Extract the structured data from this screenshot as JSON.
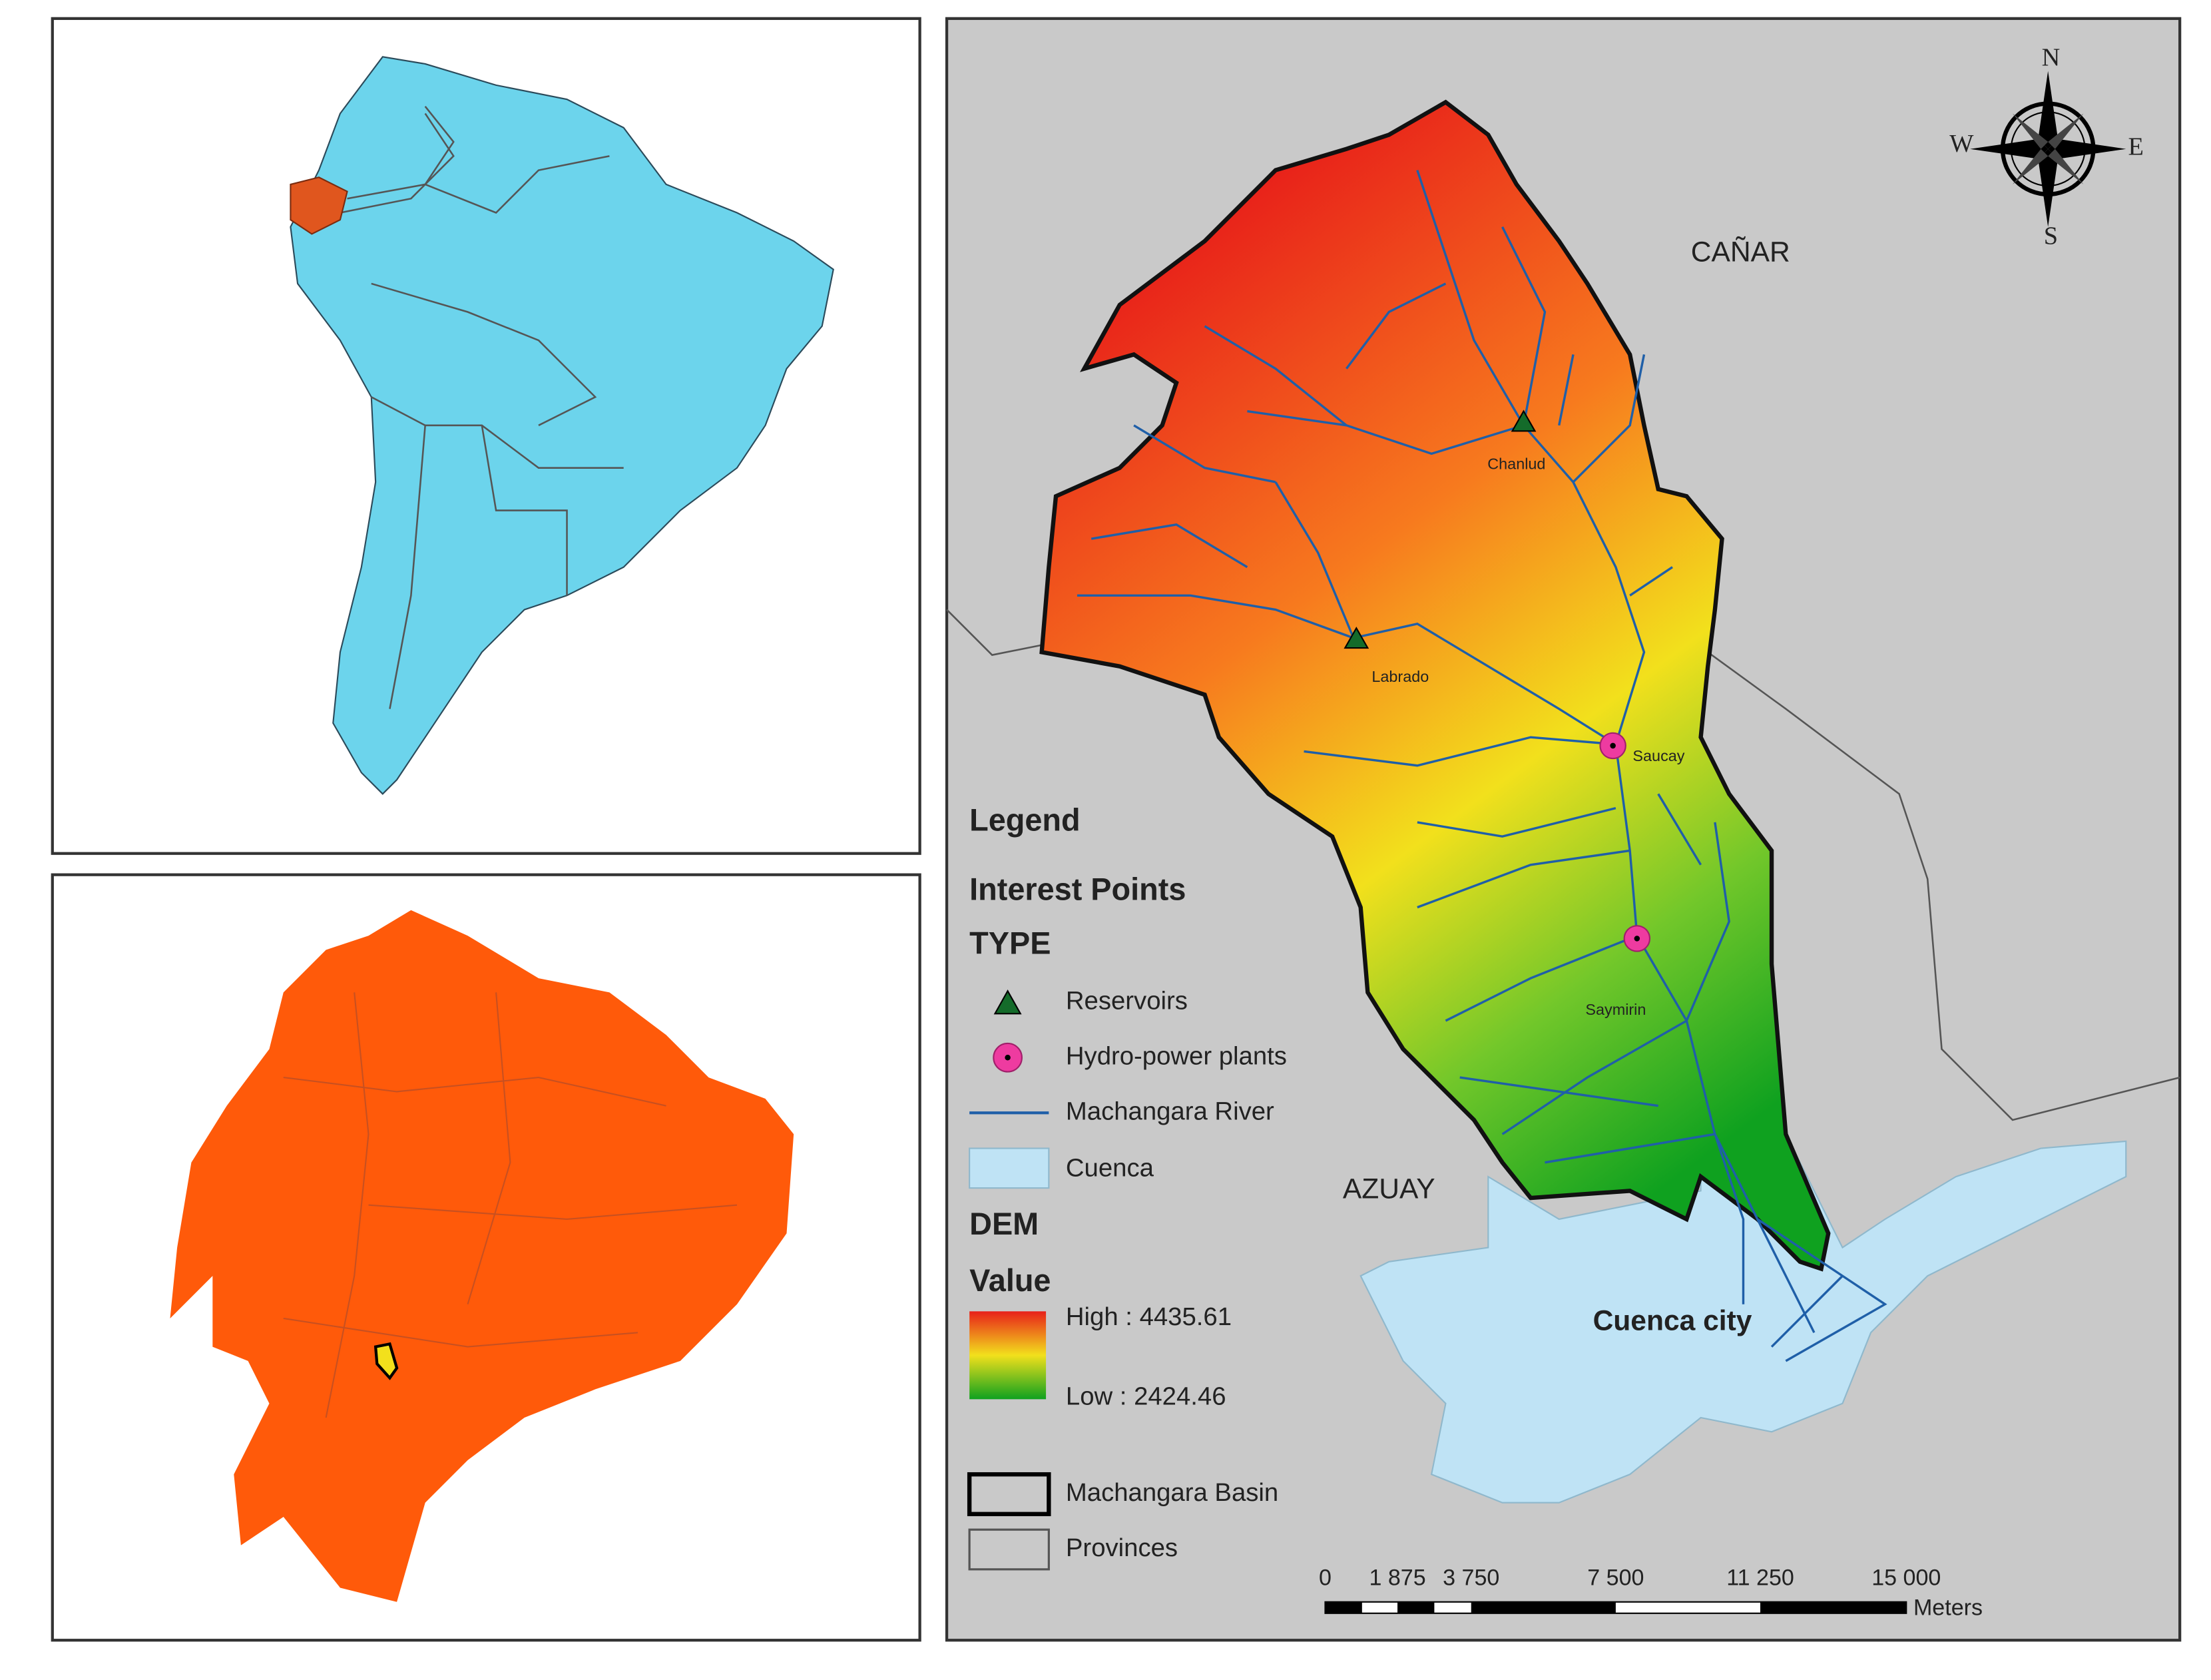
{
  "compass": {
    "north": "N",
    "south": "S",
    "east": "E",
    "west": "W"
  },
  "regions": [
    "CAÑAR",
    "AZUAY"
  ],
  "places": [
    "Chanlud",
    "Labrado",
    "Saucay",
    "Saymirin",
    "Cuenca city"
  ],
  "legend": {
    "title": "Legend",
    "points_title": "Interest Points",
    "type_title": "TYPE",
    "items": [
      "Reservoirs",
      "Hydro-power plants",
      "Machangara River",
      "Cuenca"
    ],
    "dem_title": "DEM",
    "value_title": "Value",
    "high": "High : 4435.61",
    "low": "Low : 2424.46",
    "boundaries": [
      "Machangara Basin",
      "Provinces"
    ]
  },
  "scale_bar": {
    "labels": [
      "0",
      "1 875",
      "3 750",
      "7 500",
      "11 250",
      "15 000"
    ],
    "unit": "Meters"
  }
}
